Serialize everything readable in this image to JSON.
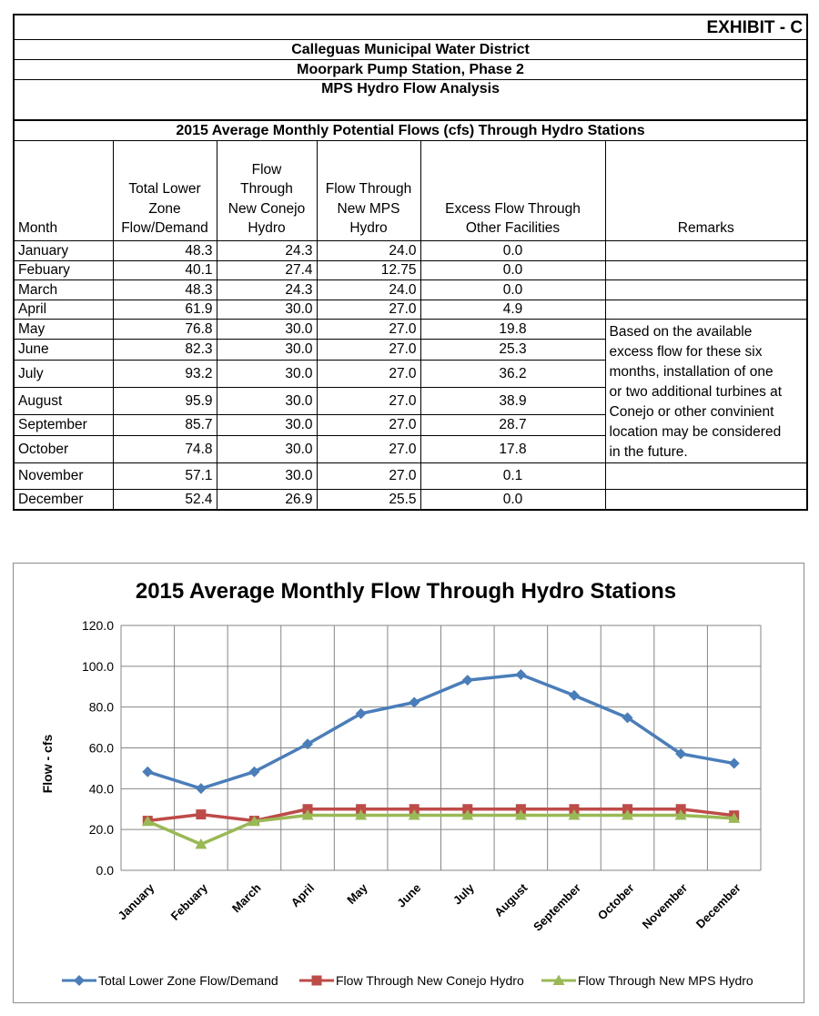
{
  "exhibit": "EXHIBIT - C",
  "district": "Calleguas Municipal Water District",
  "project": "Moorpark Pump Station, Phase 2",
  "analysis": "MPS Hydro Flow Analysis",
  "table_title": "2015 Average Monthly Potential Flows (cfs) Through Hydro Stations",
  "headers": {
    "month": "Month",
    "total_l1": "Total  Lower",
    "total_l2": "Zone",
    "total_l3": "Flow/Demand",
    "conejo_l1": "Flow",
    "conejo_l2": "Through",
    "conejo_l3": "New Conejo",
    "conejo_l4": "Hydro",
    "mps_l1": "Flow Through",
    "mps_l2": "New MPS",
    "mps_l3": "Hydro",
    "excess_l1": "Excess Flow Through",
    "excess_l2": "Other Facilities",
    "remarks": "Remarks"
  },
  "rows": [
    {
      "month": "January",
      "total": "48.3",
      "conejo": "24.3",
      "mps": "24.0",
      "excess": "0.0"
    },
    {
      "month": "Febuary",
      "total": "40.1",
      "conejo": "27.4",
      "mps": "12.75",
      "excess": "0.0"
    },
    {
      "month": "March",
      "total": "48.3",
      "conejo": "24.3",
      "mps": "24.0",
      "excess": "0.0"
    },
    {
      "month": "April",
      "total": "61.9",
      "conejo": "30.0",
      "mps": "27.0",
      "excess": "4.9"
    },
    {
      "month": "May",
      "total": "76.8",
      "conejo": "30.0",
      "mps": "27.0",
      "excess": "19.8"
    },
    {
      "month": "June",
      "total": "82.3",
      "conejo": "30.0",
      "mps": "27.0",
      "excess": "25.3"
    },
    {
      "month": "July",
      "total": "93.2",
      "conejo": "30.0",
      "mps": "27.0",
      "excess": "36.2"
    },
    {
      "month": "August",
      "total": "95.9",
      "conejo": "30.0",
      "mps": "27.0",
      "excess": "38.9"
    },
    {
      "month": "September",
      "total": "85.7",
      "conejo": "30.0",
      "mps": "27.0",
      "excess": "28.7"
    },
    {
      "month": "October",
      "total": "74.8",
      "conejo": "30.0",
      "mps": "27.0",
      "excess": "17.8"
    },
    {
      "month": "November",
      "total": "57.1",
      "conejo": "30.0",
      "mps": "27.0",
      "excess": "0.1"
    },
    {
      "month": "December",
      "total": "52.4",
      "conejo": "26.9",
      "mps": "25.5",
      "excess": "0.0"
    }
  ],
  "remarks_text": {
    "l1": "Based on the available",
    "l2": "excess flow for these six",
    "l3": "months, installation of one",
    "l4": "or two additional turbines at",
    "l5": "Conejo or other convinient",
    "l6": "location may be considered",
    "l7": "in the future."
  },
  "chart_data": {
    "type": "line",
    "title": "2015 Average Monthly Flow Through Hydro Stations",
    "xlabel": "",
    "ylabel": "Flow  -  cfs",
    "ylim": [
      0,
      120
    ],
    "yticks": [
      "0.0",
      "20.0",
      "40.0",
      "60.0",
      "80.0",
      "100.0",
      "120.0"
    ],
    "grid": true,
    "legend": "bottom",
    "categories": [
      "January",
      "Febuary",
      "March",
      "April",
      "May",
      "June",
      "July",
      "August",
      "September",
      "October",
      "November",
      "December"
    ],
    "series": [
      {
        "name": "Total  Lower Zone Flow/Demand",
        "color": "#4a7ebb",
        "marker": "diamond",
        "values": [
          48.3,
          40.1,
          48.3,
          61.9,
          76.8,
          82.3,
          93.2,
          95.9,
          85.7,
          74.8,
          57.1,
          52.4
        ]
      },
      {
        "name": "Flow Through New Conejo Hydro",
        "color": "#be4b48",
        "marker": "square",
        "values": [
          24.3,
          27.4,
          24.3,
          30.0,
          30.0,
          30.0,
          30.0,
          30.0,
          30.0,
          30.0,
          30.0,
          26.9
        ]
      },
      {
        "name": "Flow Through New MPS Hydro",
        "color": "#98b954",
        "marker": "triangle",
        "values": [
          24.0,
          12.75,
          24.0,
          27.0,
          27.0,
          27.0,
          27.0,
          27.0,
          27.0,
          27.0,
          27.0,
          25.5
        ]
      }
    ]
  }
}
